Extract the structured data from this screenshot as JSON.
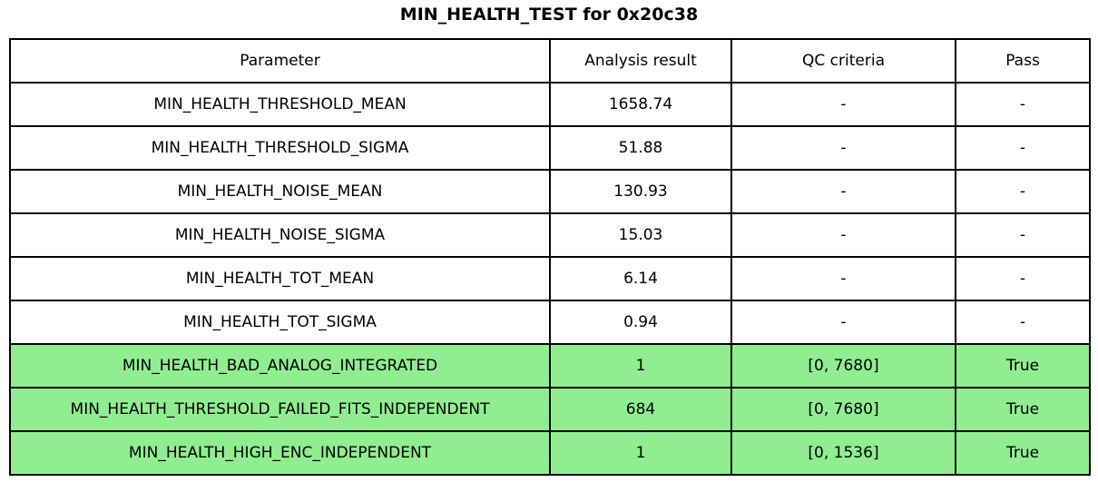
{
  "title": "MIN_HEALTH_TEST for 0x20c38",
  "colors": {
    "row_highlight": "#90EE90",
    "row_default": "#ffffff",
    "border": "#000000",
    "text": "#000000"
  },
  "chart_data": {
    "type": "table",
    "title": "MIN_HEALTH_TEST for 0x20c38",
    "columns": [
      "Parameter",
      "Analysis result",
      "QC criteria",
      "Pass"
    ],
    "rows": [
      {
        "cells": [
          "MIN_HEALTH_THRESHOLD_MEAN",
          "1658.74",
          "-",
          "-"
        ],
        "highlight": false
      },
      {
        "cells": [
          "MIN_HEALTH_THRESHOLD_SIGMA",
          "51.88",
          "-",
          "-"
        ],
        "highlight": false
      },
      {
        "cells": [
          "MIN_HEALTH_NOISE_MEAN",
          "130.93",
          "-",
          "-"
        ],
        "highlight": false
      },
      {
        "cells": [
          "MIN_HEALTH_NOISE_SIGMA",
          "15.03",
          "-",
          "-"
        ],
        "highlight": false
      },
      {
        "cells": [
          "MIN_HEALTH_TOT_MEAN",
          "6.14",
          "-",
          "-"
        ],
        "highlight": false
      },
      {
        "cells": [
          "MIN_HEALTH_TOT_SIGMA",
          "0.94",
          "-",
          "-"
        ],
        "highlight": false
      },
      {
        "cells": [
          "MIN_HEALTH_BAD_ANALOG_INTEGRATED",
          "1",
          "[0, 7680]",
          "True"
        ],
        "highlight": true
      },
      {
        "cells": [
          "MIN_HEALTH_THRESHOLD_FAILED_FITS_INDEPENDENT",
          "684",
          "[0, 7680]",
          "True"
        ],
        "highlight": true
      },
      {
        "cells": [
          "MIN_HEALTH_HIGH_ENC_INDEPENDENT",
          "1",
          "[0, 1536]",
          "True"
        ],
        "highlight": true
      }
    ]
  }
}
